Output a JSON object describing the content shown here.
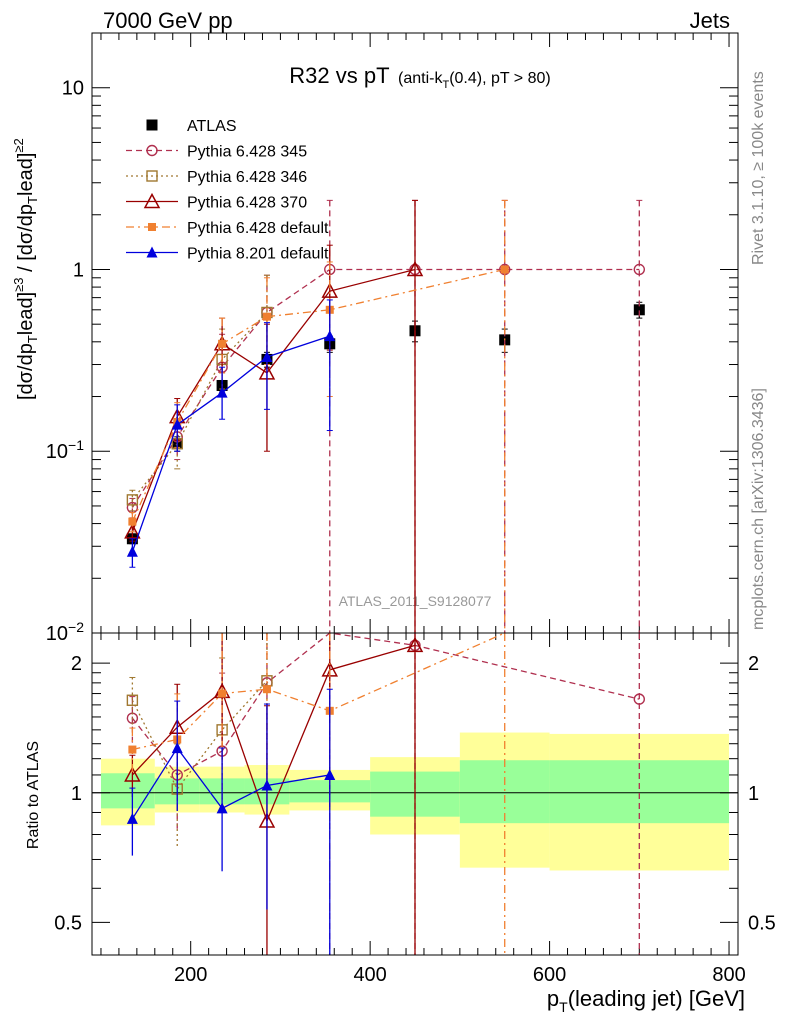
{
  "header": {
    "left": "7000 GeV pp",
    "right": "Jets"
  },
  "plot_title": {
    "main": "R32 vs pT",
    "sub_prefix": "(anti-k",
    "sub_sub": "T",
    "sub_suffix": "(0.4), pT > 80)"
  },
  "side_labels": {
    "rivet": "Rivet 3.1.10, ≥ 100k events",
    "mcplots": "mcplots.cern.ch [arXiv:1306.3436]"
  },
  "analysis_watermark": "ATLAS_2011_S9128077",
  "axis_text": {
    "ylabel_top": "[dσ/dp_Tlead]^{≥3} / [dσ/dp_Tlead]^{≥2}",
    "ylabel_bottom": "Ratio to ATLAS",
    "xlabel": "p_T(leading jet) [GeV]"
  },
  "colors": {
    "atlas": "#000000",
    "p345": "#b0304f",
    "p346": "#a07830",
    "p370": "#990000",
    "p6def": "#f08030",
    "p8def": "#0000dd",
    "band_outer": "#ffff99",
    "band_inner": "#99ff99"
  },
  "chart_data": [
    {
      "type": "scatter",
      "panel": "main",
      "title": "R32 vs pT (anti-kT(0.4), pT > 80)",
      "ylabel": "[dσ/dp_Tlead]^{≥3} / [dσ/dp_Tlead]^{≥2}",
      "xlim": [
        90,
        810
      ],
      "ylim": [
        0.01,
        20
      ],
      "yscale": "log",
      "x_ticks": [
        "200",
        "400",
        "600",
        "800"
      ],
      "y_ticks": [
        "10^-2",
        "10^-1",
        "1",
        "10"
      ],
      "legend_position": "top-left",
      "series": [
        {
          "name": "ATLAS",
          "marker": "filled-square",
          "linestyle": "none",
          "color_key": "atlas",
          "x": [
            135,
            185,
            235,
            285,
            355,
            450,
            550,
            700
          ],
          "y": [
            0.033,
            0.11,
            0.23,
            0.32,
            0.39,
            0.46,
            0.41,
            0.6
          ],
          "yerr_low": [
            0.002,
            0.01,
            0.015,
            0.03,
            0.04,
            0.06,
            0.06,
            0.06
          ],
          "yerr_high": [
            0.002,
            0.01,
            0.015,
            0.03,
            0.04,
            0.06,
            0.06,
            0.06
          ]
        },
        {
          "name": "Pythia 6.428 345",
          "marker": "open-circle",
          "linestyle": "dashed",
          "color_key": "p345",
          "x": [
            135,
            185,
            235,
            285,
            355,
            450,
            550,
            700
          ],
          "y": [
            0.049,
            0.12,
            0.29,
            0.58,
            1.0,
            1.0,
            1.0,
            1.0
          ],
          "yerr_low": [
            0.006,
            0.03,
            0.08,
            0.25,
            0.999,
            0.999,
            0.999,
            0.999
          ],
          "yerr_high": [
            0.006,
            0.03,
            0.15,
            0.35,
            1.4,
            1.4,
            1.4,
            1.4
          ]
        },
        {
          "name": "Pythia 6.428 346",
          "marker": "open-square",
          "linestyle": "dotted",
          "color_key": "p346",
          "x": [
            135,
            185,
            235,
            285
          ],
          "y": [
            0.054,
            0.11,
            0.32,
            0.58
          ],
          "yerr_low": [
            0.007,
            0.03,
            0.1,
            0.25
          ],
          "yerr_high": [
            0.007,
            0.03,
            0.15,
            0.35
          ]
        },
        {
          "name": "Pythia 6.428 370",
          "marker": "open-triangle",
          "linestyle": "solid",
          "color_key": "p370",
          "x": [
            135,
            185,
            235,
            285,
            355,
            450
          ],
          "y": [
            0.036,
            0.155,
            0.39,
            0.27,
            0.76,
            1.0
          ],
          "yerr_low": [
            0.004,
            0.04,
            0.12,
            0.17,
            0.4,
            0.999
          ],
          "yerr_high": [
            0.004,
            0.04,
            0.15,
            0.23,
            0.6,
            1.4
          ]
        },
        {
          "name": "Pythia 6.428 default",
          "marker": "filled-square-small",
          "linestyle": "dashdot",
          "color_key": "p6def",
          "x": [
            135,
            185,
            235,
            285,
            355,
            550
          ],
          "y": [
            0.041,
            0.145,
            0.39,
            0.55,
            0.6,
            1.0
          ],
          "yerr_low": [
            0.005,
            0.04,
            0.12,
            0.25,
            0.4,
            0.999
          ],
          "yerr_high": [
            0.005,
            0.04,
            0.15,
            0.35,
            0.5,
            1.4
          ]
        },
        {
          "name": "Pythia 8.201 default",
          "marker": "filled-triangle",
          "linestyle": "solid",
          "color_key": "p8def",
          "x": [
            135,
            185,
            235,
            285,
            355
          ],
          "y": [
            0.028,
            0.14,
            0.21,
            0.33,
            0.43
          ],
          "yerr_low": [
            0.005,
            0.04,
            0.06,
            0.16,
            0.3
          ],
          "yerr_high": [
            0.005,
            0.04,
            0.08,
            0.18,
            0.25
          ]
        }
      ]
    },
    {
      "type": "scatter",
      "panel": "ratio",
      "ylabel": "Ratio to ATLAS",
      "xlabel": "p_T(leading jet) [GeV]",
      "xlim": [
        90,
        810
      ],
      "ylim": [
        0.42,
        2.35
      ],
      "yscale": "log",
      "x_ticks": [
        "200",
        "400",
        "600",
        "800"
      ],
      "y_ticks": [
        "0.5",
        "1",
        "2"
      ],
      "bands": {
        "edges": [
          100,
          160,
          210,
          260,
          310,
          400,
          500,
          600,
          800
        ],
        "outer_low": [
          0.84,
          0.9,
          0.9,
          0.89,
          0.91,
          0.8,
          0.67,
          0.66
        ],
        "outer_high": [
          1.2,
          1.15,
          1.15,
          1.16,
          1.13,
          1.21,
          1.38,
          1.37
        ],
        "inner_low": [
          0.92,
          0.94,
          0.94,
          0.94,
          0.95,
          0.88,
          0.85,
          0.85
        ],
        "inner_high": [
          1.11,
          1.08,
          1.08,
          1.08,
          1.07,
          1.12,
          1.19,
          1.19
        ]
      },
      "series": [
        {
          "name": "Pythia 6.428 345",
          "color_key": "p345",
          "marker": "open-circle",
          "linestyle": "dashed",
          "x": [
            135,
            185,
            235,
            285,
            355,
            450,
            700
          ],
          "y": [
            1.49,
            1.1,
            1.25,
            1.8,
            2.5,
            2.2,
            1.65
          ]
        },
        {
          "name": "Pythia 6.428 346",
          "color_key": "p346",
          "marker": "open-square",
          "linestyle": "dotted",
          "x": [
            135,
            185,
            235,
            285
          ],
          "y": [
            1.64,
            1.02,
            1.4,
            1.82
          ]
        },
        {
          "name": "Pythia 6.428 370",
          "color_key": "p370",
          "marker": "open-triangle",
          "linestyle": "solid",
          "x": [
            135,
            185,
            235,
            285,
            355,
            450
          ],
          "y": [
            1.1,
            1.42,
            1.72,
            0.86,
            1.93,
            2.2
          ]
        },
        {
          "name": "Pythia 6.428 default",
          "color_key": "p6def",
          "marker": "filled-square-small",
          "linestyle": "dashdot",
          "x": [
            135,
            185,
            235,
            285,
            355,
            550
          ],
          "y": [
            1.26,
            1.33,
            1.7,
            1.74,
            1.55,
            2.4
          ]
        },
        {
          "name": "Pythia 8.201 default",
          "color_key": "p8def",
          "marker": "filled-triangle",
          "linestyle": "solid",
          "x": [
            135,
            185,
            235,
            285,
            355
          ],
          "y": [
            0.87,
            1.27,
            0.92,
            1.04,
            1.1
          ]
        }
      ]
    }
  ]
}
